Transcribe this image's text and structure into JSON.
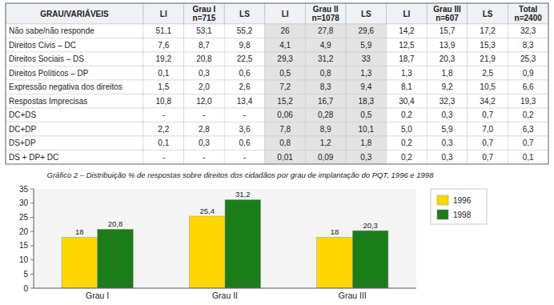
{
  "chart_data": [
    {
      "type": "table",
      "columns": [
        "GRAU/VARIÁVEIS",
        "LI",
        "Grau I\nn=715",
        "LS",
        "LI",
        "Grau II\nn=1078",
        "LS",
        "LI",
        "Grau III\nn=607",
        "LS",
        "Total\nn=2400"
      ],
      "rows": [
        [
          "Não sabe/não responde",
          "51,1",
          "53,1",
          "55,2",
          "26",
          "27,8",
          "29,6",
          "14,2",
          "15,7",
          "17,2",
          "32,3"
        ],
        [
          "Direitos Civis – DC",
          "7,6",
          "8,7",
          "9,8",
          "4,1",
          "4,9",
          "5,9",
          "12,5",
          "13,9",
          "15,3",
          "8,3"
        ],
        [
          "Direitos Sociais – DS",
          "19,2",
          "20,8",
          "22,5",
          "29,3",
          "31,2",
          "33",
          "18,7",
          "20,3",
          "21,9",
          "25,3"
        ],
        [
          "Direitos Políticos – DP",
          "0,1",
          "0,3",
          "0,6",
          "0,5",
          "0,8",
          "1,3",
          "1,3",
          "1,8",
          "2,5",
          "0,9"
        ],
        [
          "Expressão negativa dos direitos",
          "1,5",
          "2,0",
          "2,6",
          "7,2",
          "8,3",
          "9,4",
          "8,1",
          "9,2",
          "10,5",
          "6,6"
        ],
        [
          "Respostas Imprecisas",
          "10,8",
          "12,0",
          "13,4",
          "15,2",
          "16,7",
          "18,3",
          "30,4",
          "32,3",
          "34,2",
          "19,3"
        ],
        [
          "DC+DS",
          "-",
          "-",
          "-",
          "0,06",
          "0,28",
          "0,5",
          "0,2",
          "0,3",
          "0,7",
          "0,2"
        ],
        [
          "DC+DP",
          "2,2",
          "2,8",
          "3,6",
          "7,8",
          "8,9",
          "10,1",
          "5,0",
          "5,9",
          "7,0",
          "6,3"
        ],
        [
          "DS+DP",
          "0,1",
          "0,3",
          "0,6",
          "0,8",
          "1,2",
          "1,8",
          "0,2",
          "0,3",
          "0,7",
          "0,7"
        ],
        [
          "DS + DP+ DC",
          "-",
          "-",
          "-",
          "0,01",
          "0,09",
          "0,3",
          "0,2",
          "0,3",
          "0,7",
          "0,1"
        ]
      ]
    },
    {
      "type": "bar",
      "title": "Gráfico 2 – Distribuição % de respostas sobre direitos dos cidadãos por grau de implantação do PQT, 1996 e 1998",
      "categories": [
        "Grau I",
        "Grau II",
        "Grau III"
      ],
      "series": [
        {
          "name": "1996",
          "color": "#FFD700",
          "values": [
            18,
            25.4,
            18
          ],
          "value_labels": [
            "18",
            "25,4",
            "18"
          ]
        },
        {
          "name": "1998",
          "color": "#1a7d1a",
          "values": [
            20.8,
            31.2,
            20.3
          ],
          "value_labels": [
            "20,8",
            "31,2",
            "20,3"
          ]
        }
      ],
      "ylim": [
        0,
        35
      ],
      "yticks": [
        0,
        5,
        10,
        15,
        20,
        25,
        30,
        35
      ],
      "grid": false,
      "legend": "right",
      "data_labels": true
    }
  ]
}
